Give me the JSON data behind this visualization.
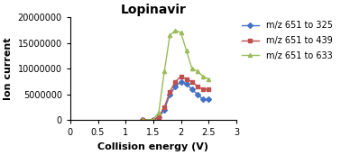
{
  "title": "Lopinavir",
  "xlabel": "Collision energy (V)",
  "ylabel": "Ion current",
  "xlim": [
    0,
    3
  ],
  "ylim": [
    0,
    20000000
  ],
  "xticks": [
    0,
    0.5,
    1,
    1.5,
    2,
    2.5,
    3
  ],
  "yticks": [
    0,
    5000000,
    10000000,
    15000000,
    20000000
  ],
  "series": [
    {
      "label": "m/z 651 to 325",
      "color": "#4472C4",
      "marker": "D",
      "markersize": 3,
      "x": [
        1.3,
        1.5,
        1.6,
        1.7,
        1.8,
        1.9,
        2.0,
        2.1,
        2.2,
        2.3,
        2.4,
        2.5
      ],
      "y": [
        0,
        100000,
        500000,
        2000000,
        5000000,
        6500000,
        7500000,
        7000000,
        6000000,
        5000000,
        4000000,
        4000000
      ]
    },
    {
      "label": "m/z 651 to 439",
      "color": "#C0504D",
      "marker": "s",
      "markersize": 3,
      "x": [
        1.3,
        1.5,
        1.6,
        1.7,
        1.8,
        1.9,
        2.0,
        2.1,
        2.2,
        2.3,
        2.4,
        2.5
      ],
      "y": [
        0,
        100000,
        600000,
        2500000,
        5500000,
        7500000,
        8500000,
        8000000,
        7500000,
        6500000,
        6000000,
        6000000
      ]
    },
    {
      "label": "m/z 651 to 633",
      "color": "#9BBB59",
      "marker": "^",
      "markersize": 3,
      "x": [
        1.3,
        1.5,
        1.6,
        1.7,
        1.8,
        1.9,
        2.0,
        2.1,
        2.2,
        2.3,
        2.4,
        2.5
      ],
      "y": [
        0,
        100000,
        1500000,
        9500000,
        16500000,
        17500000,
        17000000,
        13500000,
        10000000,
        9500000,
        8500000,
        8000000
      ]
    }
  ],
  "title_fontsize": 10,
  "axis_label_fontsize": 8,
  "tick_fontsize": 7,
  "legend_fontsize": 7,
  "background_color": "#ffffff"
}
